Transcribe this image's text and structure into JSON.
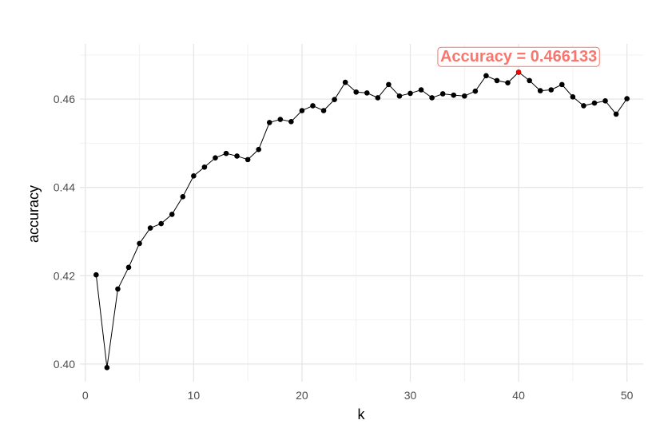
{
  "chart_data": {
    "type": "line",
    "title": "",
    "xlabel": "k",
    "ylabel": "accuracy",
    "xlim": [
      -0.5,
      51.5
    ],
    "ylim": [
      0.396,
      0.4725
    ],
    "x_ticks": [
      0,
      10,
      20,
      30,
      40,
      50
    ],
    "x_tick_labels": [
      "0",
      "10",
      "20",
      "30",
      "40",
      "50"
    ],
    "y_ticks": [
      0.4,
      0.42,
      0.44,
      0.46
    ],
    "y_tick_labels": [
      "0.40",
      "0.42",
      "0.44",
      "0.46"
    ],
    "x_minor_ticks": [
      5,
      15,
      25,
      35,
      45
    ],
    "y_minor_ticks": [
      0.41,
      0.43,
      0.45,
      0.47
    ],
    "grid": true,
    "series": [
      {
        "x": [
          1,
          2,
          3,
          4,
          5,
          6,
          7,
          8,
          9,
          10,
          11,
          12,
          13,
          14,
          15,
          16,
          17,
          18,
          19,
          20,
          21,
          22,
          23,
          24,
          25,
          26,
          27,
          28,
          29,
          30,
          31,
          32,
          33,
          34,
          35,
          36,
          37,
          38,
          39,
          40,
          41,
          42,
          43,
          44,
          45,
          46,
          47,
          48,
          49,
          50
        ],
        "y": [
          0.4202,
          0.3992,
          0.417,
          0.4219,
          0.4273,
          0.4308,
          0.4318,
          0.4339,
          0.4379,
          0.4426,
          0.4446,
          0.4467,
          0.4477,
          0.4471,
          0.4463,
          0.4486,
          0.4547,
          0.4554,
          0.4549,
          0.4574,
          0.4585,
          0.4574,
          0.4599,
          0.4638,
          0.4616,
          0.4614,
          0.4603,
          0.4633,
          0.4607,
          0.4613,
          0.4621,
          0.4603,
          0.4612,
          0.4609,
          0.4607,
          0.4618,
          0.4653,
          0.4642,
          0.4637,
          0.4661,
          0.4642,
          0.4619,
          0.4621,
          0.4633,
          0.4605,
          0.4585,
          0.4591,
          0.4596,
          0.4566,
          0.4601
        ],
        "color": "#000000"
      }
    ],
    "highlight": {
      "x": 40,
      "y": 0.466133,
      "label": "Accuracy = 0.466133",
      "color": "#f8766d"
    }
  }
}
